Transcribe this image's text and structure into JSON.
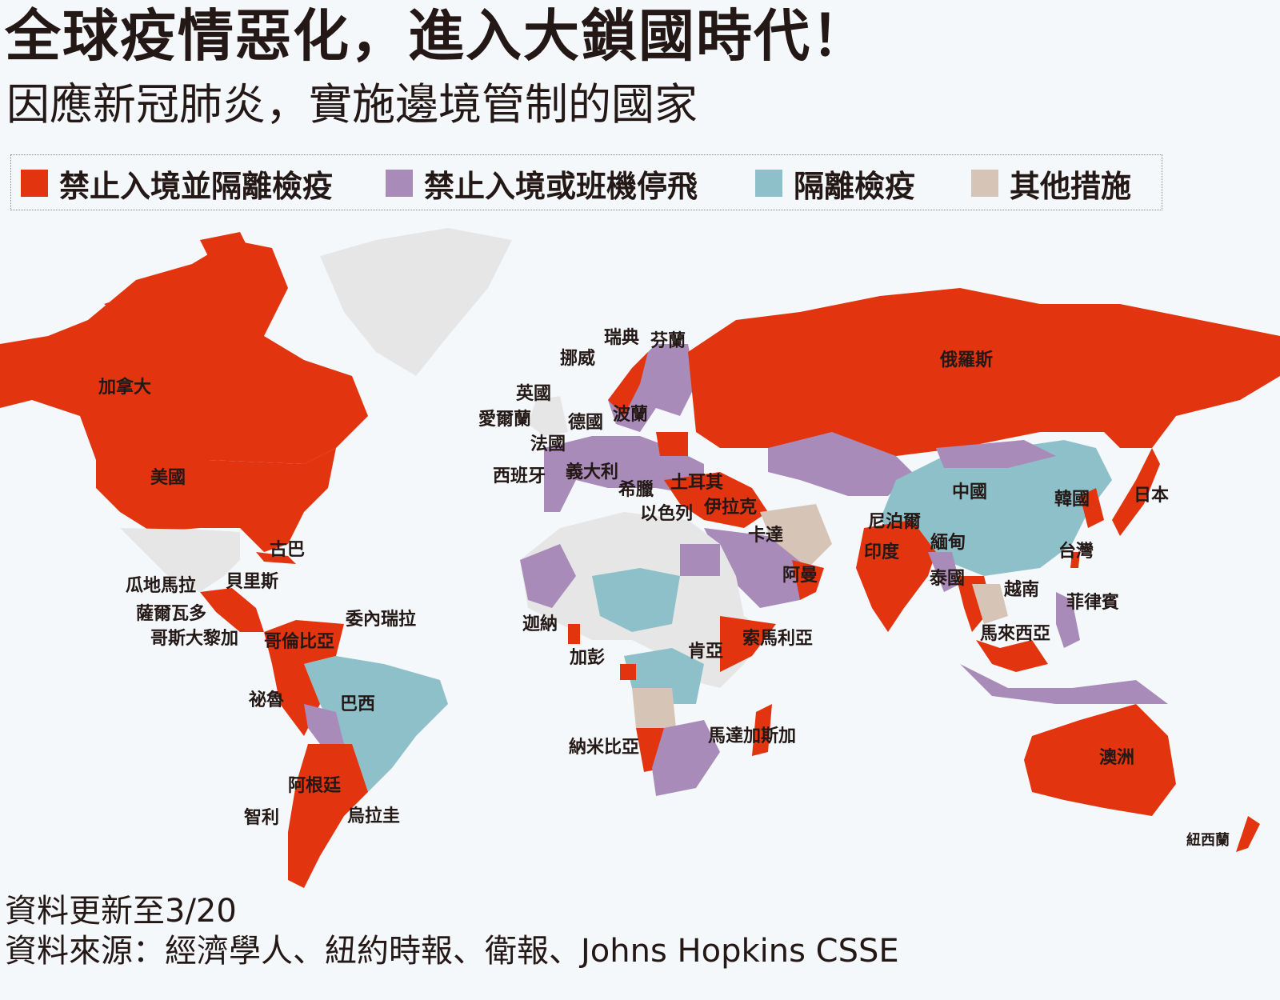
{
  "title": "全球疫情惡化，進入大鎖國時代！",
  "subtitle": "因應新冠肺炎，實施邊境管制的國家",
  "colors": {
    "ban_and_quarantine": "#e2340f",
    "ban_or_flights": "#a98bb9",
    "quarantine": "#8ec0c9",
    "other": "#d6c4b6",
    "none": "#e6e6e6",
    "background": "#f4f8fb"
  },
  "legend": [
    {
      "key": "ban_and_quarantine",
      "label": "禁止入境並隔離檢疫"
    },
    {
      "key": "ban_or_flights",
      "label": "禁止入境或班機停飛"
    },
    {
      "key": "quarantine",
      "label": "隔離檢疫"
    },
    {
      "key": "other",
      "label": "其他措施"
    }
  ],
  "countries": [
    {
      "name": "加拿大",
      "category": "ban_and_quarantine"
    },
    {
      "name": "美國",
      "category": "ban_and_quarantine"
    },
    {
      "name": "古巴",
      "category": "ban_and_quarantine"
    },
    {
      "name": "瓜地馬拉",
      "category": "ban_and_quarantine"
    },
    {
      "name": "貝里斯",
      "category": "ban_and_quarantine"
    },
    {
      "name": "薩爾瓦多",
      "category": "ban_and_quarantine"
    },
    {
      "name": "哥斯大黎加",
      "category": "ban_and_quarantine"
    },
    {
      "name": "委內瑞拉",
      "category": "ban_and_quarantine"
    },
    {
      "name": "哥倫比亞",
      "category": "ban_and_quarantine"
    },
    {
      "name": "祕魯",
      "category": "ban_and_quarantine"
    },
    {
      "name": "巴西",
      "category": "quarantine"
    },
    {
      "name": "阿根廷",
      "category": "ban_and_quarantine"
    },
    {
      "name": "智利",
      "category": "ban_and_quarantine"
    },
    {
      "name": "烏拉圭",
      "category": "ban_and_quarantine"
    },
    {
      "name": "瑞典",
      "category": "ban_or_flights"
    },
    {
      "name": "芬蘭",
      "category": "ban_or_flights"
    },
    {
      "name": "挪威",
      "category": "ban_and_quarantine"
    },
    {
      "name": "英國",
      "category": "none"
    },
    {
      "name": "愛爾蘭",
      "category": "none"
    },
    {
      "name": "德國",
      "category": "ban_or_flights"
    },
    {
      "name": "波蘭",
      "category": "ban_and_quarantine"
    },
    {
      "name": "法國",
      "category": "ban_or_flights"
    },
    {
      "name": "西班牙",
      "category": "ban_or_flights"
    },
    {
      "name": "義大利",
      "category": "ban_or_flights"
    },
    {
      "name": "希臘",
      "category": "ban_or_flights"
    },
    {
      "name": "土耳其",
      "category": "ban_or_flights"
    },
    {
      "name": "以色列",
      "category": "ban_and_quarantine"
    },
    {
      "name": "伊拉克",
      "category": "ban_and_quarantine"
    },
    {
      "name": "卡達",
      "category": "ban_and_quarantine"
    },
    {
      "name": "阿曼",
      "category": "ban_and_quarantine"
    },
    {
      "name": "俄羅斯",
      "category": "ban_and_quarantine"
    },
    {
      "name": "中國",
      "category": "quarantine"
    },
    {
      "name": "韓國",
      "category": "ban_and_quarantine"
    },
    {
      "name": "日本",
      "category": "ban_and_quarantine"
    },
    {
      "name": "台灣",
      "category": "ban_and_quarantine"
    },
    {
      "name": "尼泊爾",
      "category": "ban_and_quarantine"
    },
    {
      "name": "印度",
      "category": "ban_and_quarantine"
    },
    {
      "name": "緬甸",
      "category": "ban_or_flights"
    },
    {
      "name": "泰國",
      "category": "ban_and_quarantine"
    },
    {
      "name": "越南",
      "category": "ban_and_quarantine"
    },
    {
      "name": "菲律賓",
      "category": "ban_or_flights"
    },
    {
      "name": "馬來西亞",
      "category": "ban_and_quarantine"
    },
    {
      "name": "迦納",
      "category": "ban_and_quarantine"
    },
    {
      "name": "加彭",
      "category": "ban_and_quarantine"
    },
    {
      "name": "肯亞",
      "category": "ban_and_quarantine"
    },
    {
      "name": "索馬利亞",
      "category": "ban_and_quarantine"
    },
    {
      "name": "納米比亞",
      "category": "ban_and_quarantine"
    },
    {
      "name": "馬達加斯加",
      "category": "ban_and_quarantine"
    },
    {
      "name": "澳洲",
      "category": "ban_and_quarantine"
    },
    {
      "name": "紐西蘭",
      "category": "ban_and_quarantine"
    }
  ],
  "footer": {
    "updated": "資料更新至3/20",
    "source": "資料來源：經濟學人、紐約時報、衛報、Johns Hopkins CSSE"
  }
}
